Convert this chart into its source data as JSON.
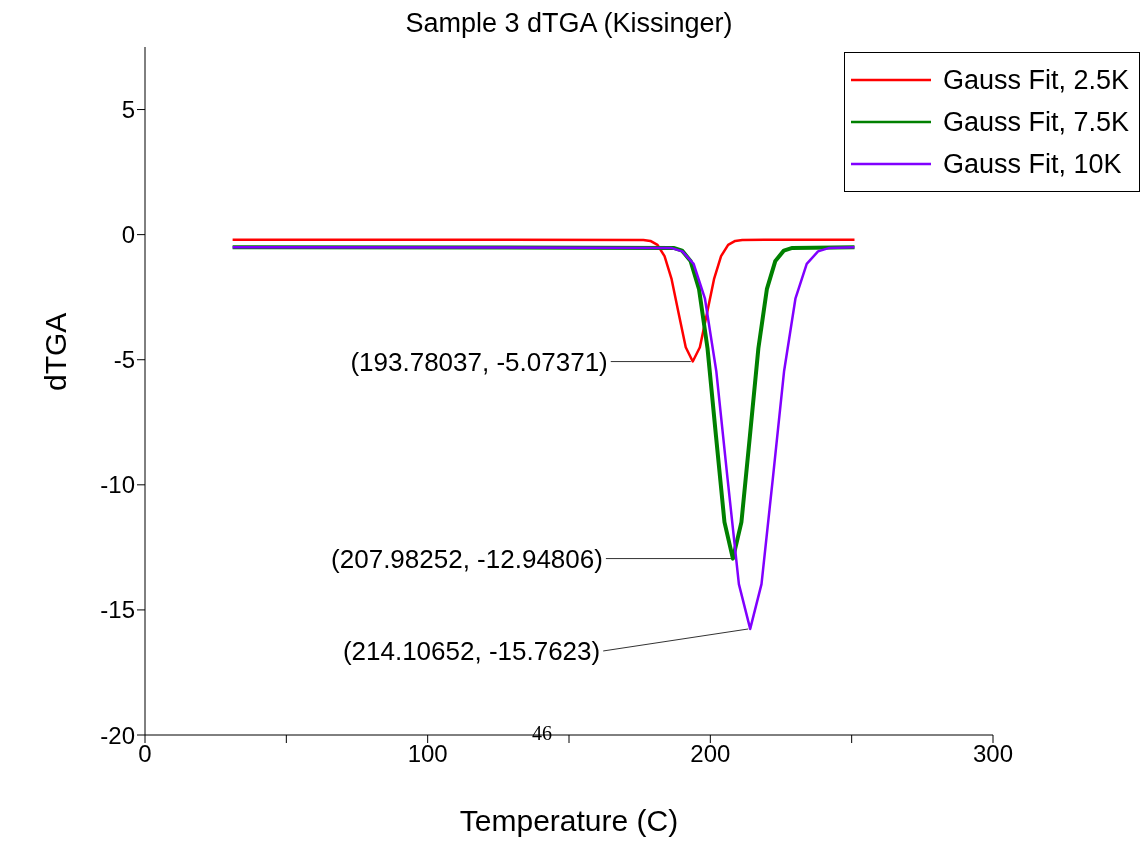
{
  "chart_data": {
    "type": "line",
    "title": "Sample 3 dTGA (Kissinger)",
    "xlabel": "Temperature (C)",
    "ylabel": "dTGA",
    "xlim": [
      0,
      300
    ],
    "xticks": [
      0,
      {
        "value": 50,
        "label": null
      },
      100,
      {
        "value": 150,
        "label": null
      },
      200,
      {
        "value": 250,
        "label": null
      },
      300
    ],
    "ylim": [
      -20,
      7.5
    ],
    "yticks": [
      -20,
      -15,
      -10,
      -5,
      0,
      5
    ],
    "grid": false,
    "legend": "top right",
    "marker": "none",
    "line_style": "solid",
    "series": [
      {
        "name": "Gauss Fit, 2.5K",
        "color": "#ff0000",
        "x": [
          31,
          176.3,
          178.8,
          181.3,
          183.8,
          186.3,
          188.8,
          191.3,
          193.78,
          196.3,
          198.8,
          201.3,
          203.8,
          206.3,
          208.8,
          211.3,
          251
        ],
        "values": [
          -0.2,
          -0.21,
          -0.25,
          -0.41,
          -0.86,
          -1.78,
          -3.15,
          -4.5,
          -5.07,
          -4.5,
          -3.15,
          -1.78,
          -0.86,
          -0.41,
          -0.25,
          -0.21,
          -0.2
        ]
      },
      {
        "name": "Gauss Fit, 7.5K",
        "color": "#008000",
        "x": [
          31,
          187,
          190,
          193,
          196,
          199,
          202,
          205,
          207.98,
          211,
          214,
          217,
          220,
          223,
          226,
          229,
          251
        ],
        "values": [
          -0.5,
          -0.53,
          -0.64,
          -1.05,
          -2.18,
          -4.54,
          -8.05,
          -11.49,
          -12.95,
          -11.49,
          -8.05,
          -4.54,
          -2.18,
          -1.05,
          -0.64,
          -0.53,
          -0.5
        ]
      },
      {
        "name": "Gauss Fit, 10K",
        "color": "#8000ff",
        "x": [
          31,
          186.1,
          190.1,
          194.1,
          198.1,
          202.1,
          206.1,
          210.1,
          214.1,
          218.1,
          222.1,
          226.1,
          230.1,
          234.1,
          238.1,
          242.1,
          251
        ],
        "values": [
          -0.5,
          -0.53,
          -0.67,
          -1.17,
          -2.56,
          -5.45,
          -9.76,
          -13.97,
          -15.76,
          -13.97,
          -9.76,
          -5.45,
          -2.56,
          -1.17,
          -0.67,
          -0.53,
          -0.5
        ]
      }
    ],
    "annotations": [
      {
        "text": "(193.78037, -5.07371)",
        "x": 193.78037,
        "y": -5.07371
      },
      {
        "text": "(207.98252, -12.94806)",
        "x": 207.98252,
        "y": -12.94806
      },
      {
        "text": "(214.10652, -15.7623)",
        "x": 214.10652,
        "y": -15.7623
      },
      "46"
    ]
  }
}
